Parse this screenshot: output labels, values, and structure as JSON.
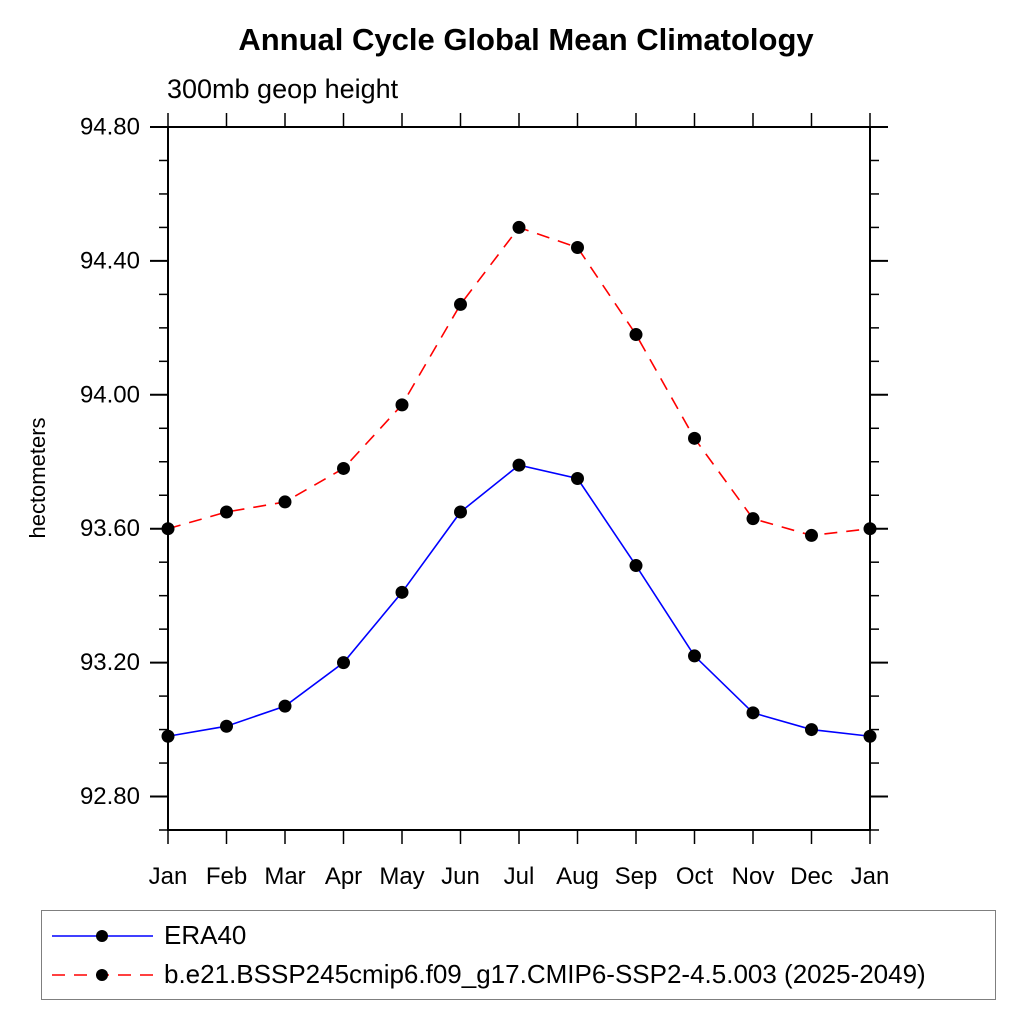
{
  "chart_data": {
    "type": "line",
    "title": "Annual Cycle Global Mean Climatology",
    "subtitle": "300mb geop height",
    "ylabel": "hectometers",
    "x_categories": [
      "Jan",
      "Feb",
      "Mar",
      "Apr",
      "May",
      "Jun",
      "Jul",
      "Aug",
      "Sep",
      "Oct",
      "Nov",
      "Dec",
      "Jan"
    ],
    "ylim": [
      92.7,
      94.8
    ],
    "y_ticks_major": [
      92.8,
      93.2,
      93.6,
      94.0,
      94.4,
      94.8
    ],
    "y_minor_step": 0.1,
    "grid": false,
    "legend_position": "bottom-left-box",
    "frame_color": "#000000",
    "series": [
      {
        "name": "ERA40",
        "color": "#0000ff",
        "line_style": "solid",
        "marker": "filled-circle",
        "marker_color": "#000000",
        "values": [
          92.98,
          93.01,
          93.07,
          93.2,
          93.41,
          93.65,
          93.79,
          93.75,
          93.49,
          93.22,
          93.05,
          93.0,
          92.98
        ]
      },
      {
        "name": "b.e21.BSSP245cmip6.f09_g17.CMIP6-SSP2-4.5.003 (2025-2049)",
        "color": "#ff0000",
        "line_style": "dashed",
        "marker": "filled-circle",
        "marker_color": "#000000",
        "values": [
          93.6,
          93.65,
          93.68,
          93.78,
          93.97,
          94.27,
          94.5,
          94.44,
          94.18,
          93.87,
          93.63,
          93.58,
          93.6
        ]
      }
    ]
  }
}
